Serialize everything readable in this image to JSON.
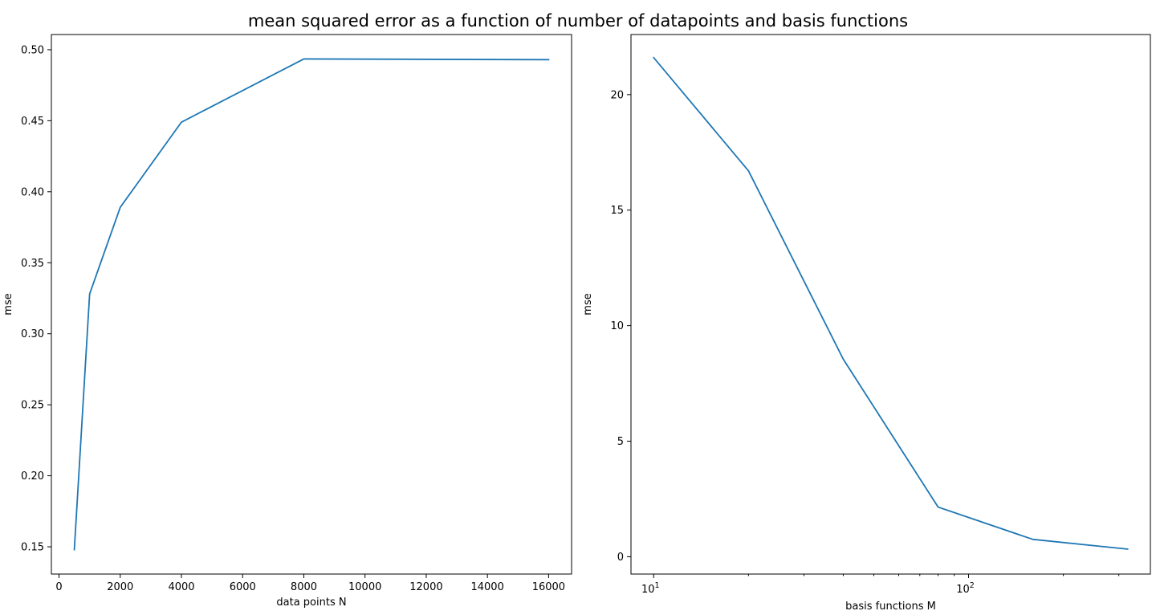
{
  "figure": {
    "title": "mean squared error as a function of number of datapoints and basis functions"
  },
  "colors": {
    "series": "#1f77b4",
    "axes": "#000000",
    "background": "#ffffff"
  },
  "chart_data": [
    {
      "type": "line",
      "xlabel": "data points N",
      "ylabel": "mse",
      "xscale": "linear",
      "xlim": [
        -250,
        16750
      ],
      "ylim": [
        0.1308,
        0.5107
      ],
      "xticks": [
        0,
        2000,
        4000,
        6000,
        8000,
        10000,
        12000,
        14000,
        16000
      ],
      "xtick_labels": [
        "0",
        "2000",
        "4000",
        "6000",
        "8000",
        "10000",
        "12000",
        "14000",
        "16000"
      ],
      "yticks": [
        0.15,
        0.2,
        0.25,
        0.3,
        0.35,
        0.4,
        0.45,
        0.5
      ],
      "ytick_labels": [
        "0.15",
        "0.20",
        "0.25",
        "0.30",
        "0.35",
        "0.40",
        "0.45",
        "0.50"
      ],
      "grid": false,
      "x": [
        500,
        1000,
        2000,
        4000,
        8000,
        16000
      ],
      "y": [
        0.148,
        0.328,
        0.389,
        0.449,
        0.4935,
        0.493
      ]
    },
    {
      "type": "line",
      "xlabel": "basis functions M",
      "ylabel": "mse",
      "xscale": "log",
      "xlim": [
        8.47,
        377.9
      ],
      "ylim": [
        -0.75,
        22.6
      ],
      "xticks": [
        10,
        100
      ],
      "xtick_labels": [
        {
          "base": "10",
          "exp": "1"
        },
        {
          "base": "10",
          "exp": "2"
        }
      ],
      "xminor_ticks": [
        20,
        30,
        40,
        50,
        60,
        70,
        80,
        90,
        200,
        300
      ],
      "yticks": [
        0,
        5,
        10,
        15,
        20
      ],
      "ytick_labels": [
        "0",
        "5",
        "10",
        "15",
        "20"
      ],
      "grid": false,
      "x": [
        10,
        20,
        40,
        80,
        160,
        320
      ],
      "y": [
        21.6,
        16.7,
        8.55,
        2.15,
        0.75,
        0.33
      ]
    }
  ]
}
